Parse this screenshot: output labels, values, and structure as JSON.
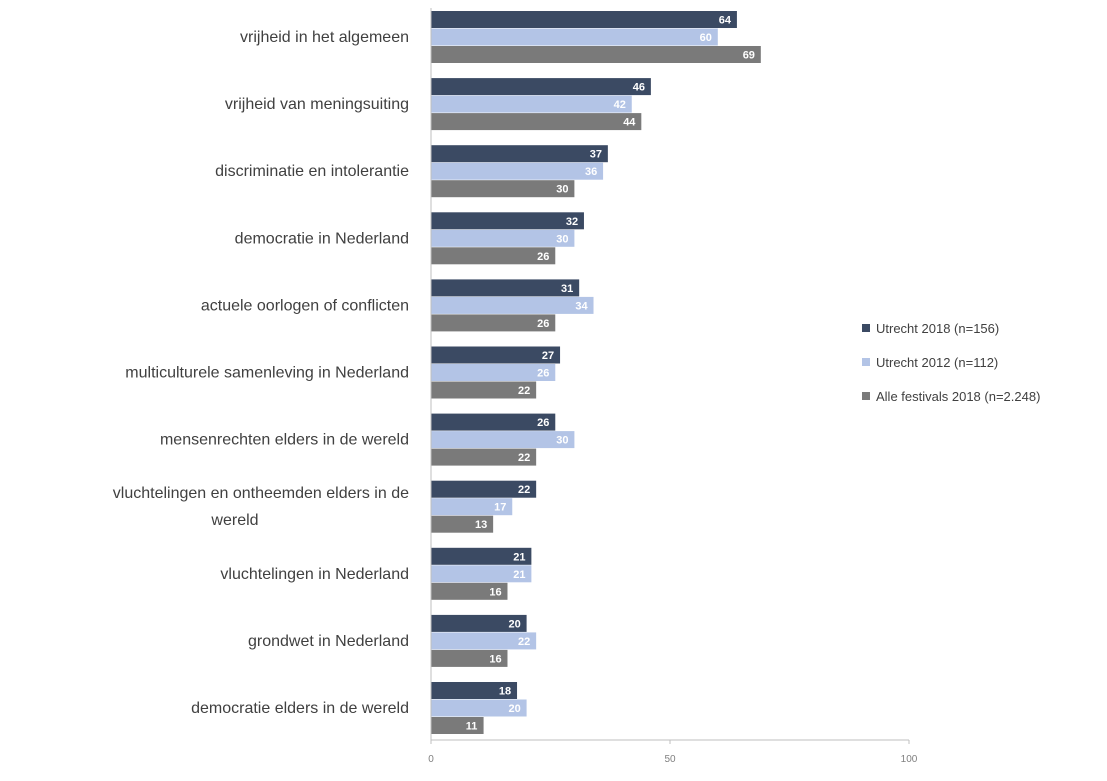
{
  "chart_data": {
    "type": "bar",
    "orientation": "horizontal",
    "categories": [
      [
        "vrijheid in het algemeen"
      ],
      [
        "vrijheid van meningsuiting"
      ],
      [
        "discriminatie en intolerantie"
      ],
      [
        "democratie in Nederland"
      ],
      [
        "actuele oorlogen of conflicten"
      ],
      [
        "multiculturele samenleving in Nederland"
      ],
      [
        "mensenrechten elders in de wereld"
      ],
      [
        "vluchtelingen en ontheemden elders in de",
        "wereld"
      ],
      [
        "vluchtelingen in Nederland"
      ],
      [
        "grondwet in Nederland"
      ],
      [
        "democratie elders in de wereld"
      ]
    ],
    "series": [
      {
        "name": "Utrecht 2018 (n=156)",
        "color": "#3b4a63",
        "label_color": "#ffffff",
        "values": [
          64,
          46,
          37,
          32,
          31,
          27,
          26,
          22,
          21,
          20,
          18
        ]
      },
      {
        "name": "Utrecht 2012 (n=112)",
        "color": "#b3c4e6",
        "label_color": "#ffffff",
        "values": [
          60,
          42,
          36,
          30,
          34,
          26,
          30,
          17,
          21,
          22,
          20
        ]
      },
      {
        "name": "Alle festivals 2018 (n=2.248)",
        "color": "#7a7a7a",
        "label_color": "#ffffff",
        "values": [
          69,
          44,
          30,
          26,
          26,
          22,
          22,
          13,
          16,
          16,
          11
        ]
      }
    ],
    "xlim": [
      0,
      100
    ],
    "xticks": [
      "0",
      "50",
      "100"
    ],
    "grid": false,
    "legend": "right"
  }
}
